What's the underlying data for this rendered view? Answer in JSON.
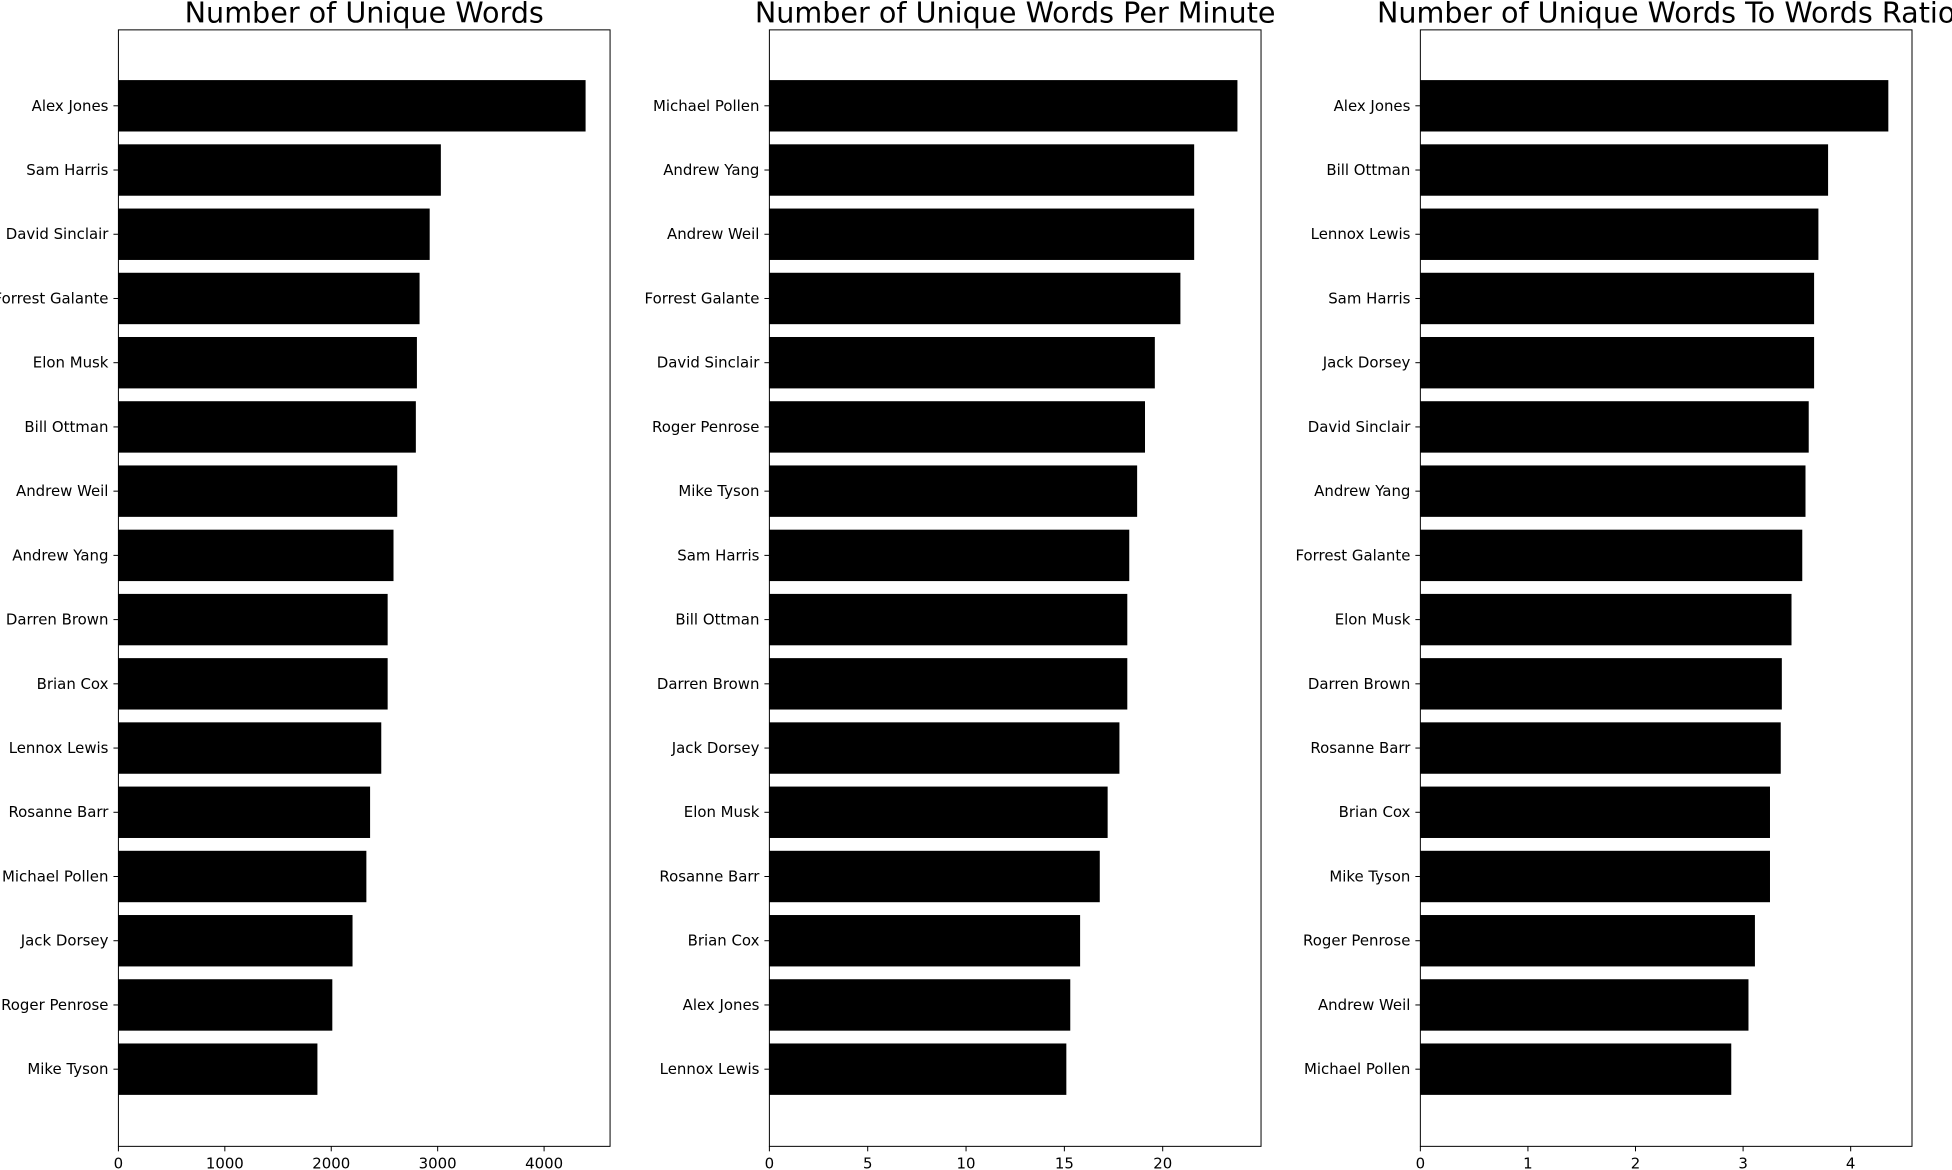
{
  "chart_data": [
    {
      "type": "bar",
      "orientation": "horizontal",
      "title": "Number of Unique Words",
      "categories": [
        "Alex Jones",
        "Sam Harris",
        "David Sinclair",
        "Forrest Galante",
        "Elon Musk",
        "Bill Ottman",
        "Andrew Weil",
        "Andrew Yang",
        "Darren Brown",
        "Brian Cox",
        "Lennox Lewis",
        "Rosanne Barr",
        "Michael Pollen",
        "Jack Dorsey",
        "Roger Penrose",
        "Mike Tyson"
      ],
      "values": [
        4390,
        3030,
        2925,
        2830,
        2805,
        2795,
        2620,
        2585,
        2530,
        2530,
        2470,
        2365,
        2330,
        2200,
        2010,
        1870
      ],
      "xlim": [
        0,
        4620
      ],
      "xticks": [
        0,
        1000,
        2000,
        3000,
        4000
      ],
      "xlabel": "",
      "ylabel": "",
      "grid": false,
      "color": "#000000"
    },
    {
      "type": "bar",
      "orientation": "horizontal",
      "title": "Number of Unique Words Per Minute",
      "categories": [
        "Michael Pollen",
        "Andrew Yang",
        "Andrew Weil",
        "Forrest Galante",
        "David Sinclair",
        "Roger Penrose",
        "Mike Tyson",
        "Sam Harris",
        "Bill Ottman",
        "Darren Brown",
        "Jack Dorsey",
        "Elon Musk",
        "Rosanne Barr",
        "Brian Cox",
        "Alex Jones",
        "Lennox Lewis"
      ],
      "values": [
        23.8,
        21.6,
        21.6,
        20.9,
        19.6,
        19.1,
        18.7,
        18.3,
        18.2,
        18.2,
        17.8,
        17.2,
        16.8,
        15.8,
        15.3,
        15.1
      ],
      "xlim": [
        0,
        25.0
      ],
      "xticks": [
        0,
        5,
        10,
        15,
        20
      ],
      "xlabel": "",
      "ylabel": "",
      "grid": false,
      "color": "#000000"
    },
    {
      "type": "bar",
      "orientation": "horizontal",
      "title": "Number of Unique Words To Words Ratio",
      "categories": [
        "Alex Jones",
        "Bill Ottman",
        "Lennox Lewis",
        "Sam Harris",
        "Jack Dorsey",
        "David Sinclair",
        "Andrew Yang",
        "Forrest Galante",
        "Elon Musk",
        "Darren Brown",
        "Rosanne Barr",
        "Brian Cox",
        "Mike Tyson",
        "Roger Penrose",
        "Andrew Weil",
        "Michael Pollen"
      ],
      "values": [
        4.35,
        3.79,
        3.7,
        3.66,
        3.66,
        3.61,
        3.58,
        3.55,
        3.45,
        3.36,
        3.35,
        3.25,
        3.25,
        3.11,
        3.05,
        2.89
      ],
      "xlim": [
        0,
        4.57
      ],
      "xticks": [
        0,
        1,
        2,
        3,
        4
      ],
      "xlabel": "",
      "ylabel": "",
      "grid": false,
      "color": "#000000"
    }
  ]
}
